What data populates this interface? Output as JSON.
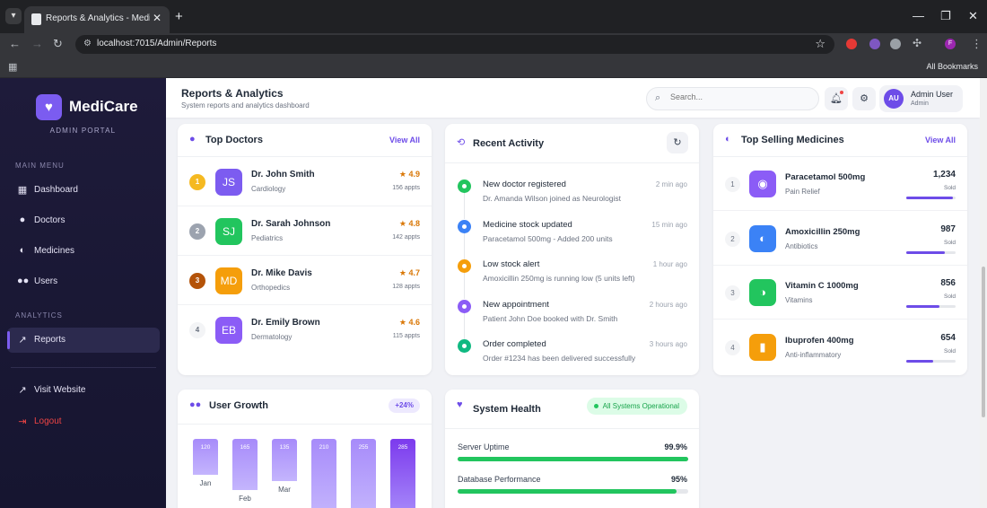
{
  "browser": {
    "tab_title": "Reports & Analytics - MediCare",
    "url": "localhost:7015/Admin/Reports",
    "bookmarks_label": "All Bookmarks",
    "profile_initial": "F"
  },
  "sidebar": {
    "brand": "MediCare",
    "portal": "ADMIN PORTAL",
    "section_main": "MAIN MENU",
    "section_analytics": "ANALYTICS",
    "items": [
      {
        "label": "Dashboard",
        "icon": "grid-icon"
      },
      {
        "label": "Doctors",
        "icon": "user-icon"
      },
      {
        "label": "Medicines",
        "icon": "pills-icon"
      },
      {
        "label": "Users",
        "icon": "users-icon"
      },
      {
        "label": "Reports",
        "icon": "chart-icon",
        "active": true
      },
      {
        "label": "Visit Website",
        "icon": "external-link-icon"
      },
      {
        "label": "Logout",
        "icon": "logout-icon"
      }
    ]
  },
  "header": {
    "title": "Reports & Analytics",
    "subtitle": "System reports and analytics dashboard",
    "search_placeholder": "Search...",
    "user_initials": "AU",
    "user_name": "Admin User",
    "user_role": "Admin"
  },
  "top_doctors": {
    "title": "Top Doctors",
    "view_all": "View All",
    "rows": [
      {
        "rank": "1",
        "initials": "JS",
        "name": "Dr. John Smith",
        "specialty": "Cardiology",
        "rating": "★ 4.9",
        "appts": "156 appts",
        "color": "#7c5cf0",
        "rank_color": "#f5b921"
      },
      {
        "rank": "2",
        "initials": "SJ",
        "name": "Dr. Sarah Johnson",
        "specialty": "Pediatrics",
        "rating": "★ 4.8",
        "appts": "142 appts",
        "color": "#22c55e",
        "rank_color": "#9ca3af"
      },
      {
        "rank": "3",
        "initials": "MD",
        "name": "Dr. Mike Davis",
        "specialty": "Orthopedics",
        "rating": "★ 4.7",
        "appts": "128 appts",
        "color": "#f59e0b",
        "rank_color": "#b45309"
      },
      {
        "rank": "4",
        "initials": "EB",
        "name": "Dr. Emily Brown",
        "specialty": "Dermatology",
        "rating": "★ 4.6",
        "appts": "115 appts",
        "color": "#8b5cf6",
        "rank_color": "#f3f4f6"
      }
    ]
  },
  "recent_activity": {
    "title": "Recent Activity",
    "items": [
      {
        "title": "New doctor registered",
        "desc": "Dr. Amanda Wilson joined as Neurologist",
        "time": "2 min ago",
        "color": "#22c55e"
      },
      {
        "title": "Medicine stock updated",
        "desc": "Paracetamol 500mg - Added 200 units",
        "time": "15 min ago",
        "color": "#3b82f6"
      },
      {
        "title": "Low stock alert",
        "desc": "Amoxicillin 250mg is running low (5 units left)",
        "time": "1 hour ago",
        "color": "#f59e0b"
      },
      {
        "title": "New appointment",
        "desc": "Patient John Doe booked with Dr. Smith",
        "time": "2 hours ago",
        "color": "#8b5cf6"
      },
      {
        "title": "Order completed",
        "desc": "Order #1234 has been delivered successfully",
        "time": "3 hours ago",
        "color": "#10b981"
      }
    ]
  },
  "top_medicines": {
    "title": "Top Selling Medicines",
    "view_all": "View All",
    "rows": [
      {
        "rank": "1",
        "name": "Paracetamol 500mg",
        "category": "Pain Relief",
        "sold": "1,234",
        "sold_label": "Sold",
        "fill": 0.95,
        "color": "#8b5cf6"
      },
      {
        "rank": "2",
        "name": "Amoxicillin 250mg",
        "category": "Antibiotics",
        "sold": "987",
        "sold_label": "Sold",
        "fill": 0.78,
        "color": "#3b82f6"
      },
      {
        "rank": "3",
        "name": "Vitamin C 1000mg",
        "category": "Vitamins",
        "sold": "856",
        "sold_label": "Sold",
        "fill": 0.68,
        "color": "#22c55e"
      },
      {
        "rank": "4",
        "name": "Ibuprofen 400mg",
        "category": "Anti-inflammatory",
        "sold": "654",
        "sold_label": "Sold",
        "fill": 0.55,
        "color": "#f59e0b"
      }
    ]
  },
  "user_growth": {
    "title": "User Growth",
    "badge": "+24%",
    "bars": [
      {
        "value": "120",
        "label": "Jan"
      },
      {
        "value": "165",
        "label": "Feb"
      },
      {
        "value": "135",
        "label": "Mar"
      },
      {
        "value": "210",
        "label": ""
      },
      {
        "value": "255",
        "label": ""
      },
      {
        "value": "285",
        "label": ""
      }
    ]
  },
  "system_health": {
    "title": "System Health",
    "status": "All Systems Operational",
    "metrics": [
      {
        "label": "Server Uptime",
        "value": "99.9%",
        "fill": 0.999
      },
      {
        "label": "Database Performance",
        "value": "95%",
        "fill": 0.95
      }
    ]
  }
}
